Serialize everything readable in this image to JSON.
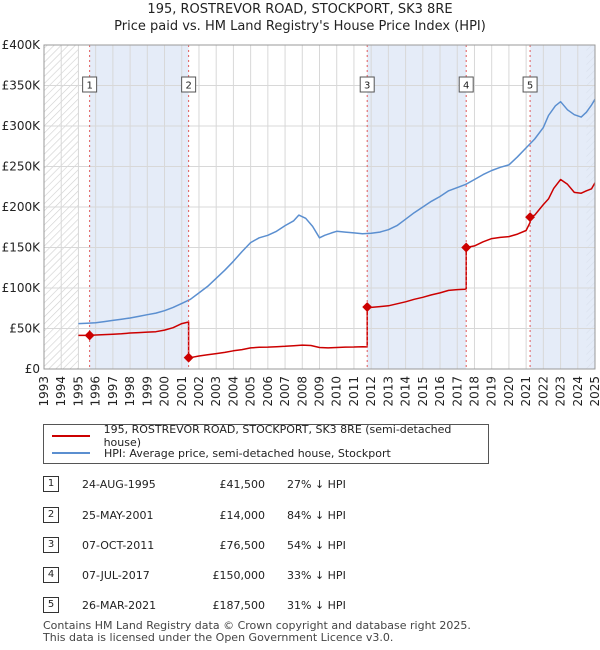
{
  "title_line1": "195, ROSTREVOR ROAD, STOCKPORT, SK3 8RE",
  "title_line2": "Price paid vs. HM Land Registry's House Price Index (HPI)",
  "legend": {
    "property": "195, ROSTREVOR ROAD, STOCKPORT, SK3 8RE (semi-detached house)",
    "hpi": "HPI: Average price, semi-detached house, Stockport"
  },
  "transactions": [
    {
      "num": "1",
      "date": "24-AUG-1995",
      "price": "£41,500",
      "hpi": "27% ↓ HPI"
    },
    {
      "num": "2",
      "date": "25-MAY-2001",
      "price": "£14,000",
      "hpi": "84% ↓ HPI"
    },
    {
      "num": "3",
      "date": "07-OCT-2011",
      "price": "£76,500",
      "hpi": "54% ↓ HPI"
    },
    {
      "num": "4",
      "date": "07-JUL-2017",
      "price": "£150,000",
      "hpi": "33% ↓ HPI"
    },
    {
      "num": "5",
      "date": "26-MAR-2021",
      "price": "£187,500",
      "hpi": "31% ↓ HPI"
    }
  ],
  "footer_line1": "Contains HM Land Registry data © Crown copyright and database right 2025.",
  "footer_line2": "This data is licensed under the Open Government Licence v3.0.",
  "colors": {
    "property": "#cc0000",
    "hpi": "#5b8fd0",
    "shade": "#dce6f5",
    "marker_line": "#e05a5a"
  },
  "chart_data": {
    "type": "line",
    "xlim": [
      1993,
      2025
    ],
    "ylim": [
      0,
      400000
    ],
    "x_ticks": [
      "1993",
      "1994",
      "1995",
      "1996",
      "1997",
      "1998",
      "1999",
      "2000",
      "2001",
      "2002",
      "2003",
      "2004",
      "2005",
      "2006",
      "2007",
      "2008",
      "2009",
      "2010",
      "2011",
      "2012",
      "2013",
      "2014",
      "2015",
      "2016",
      "2017",
      "2018",
      "2019",
      "2020",
      "2021",
      "2022",
      "2023",
      "2024",
      "2025"
    ],
    "y_ticks": [
      {
        "value": 0,
        "label": "£0"
      },
      {
        "value": 50000,
        "label": "£50K"
      },
      {
        "value": 100000,
        "label": "£100K"
      },
      {
        "value": 150000,
        "label": "£150K"
      },
      {
        "value": 200000,
        "label": "£200K"
      },
      {
        "value": 250000,
        "label": "£250K"
      },
      {
        "value": 300000,
        "label": "£300K"
      },
      {
        "value": 350000,
        "label": "£350K"
      },
      {
        "value": 400000,
        "label": "£400K"
      }
    ],
    "grid": true,
    "hatched_ranges": [
      [
        1993,
        1995
      ],
      [
        2024.5,
        2025
      ]
    ],
    "shaded_ranges": [
      [
        1995.65,
        2001.4
      ],
      [
        2011.77,
        2017.52
      ],
      [
        2021.23,
        2025
      ]
    ],
    "sales": [
      {
        "label": "1",
        "x": 1995.65,
        "y": 41500
      },
      {
        "label": "2",
        "x": 2001.4,
        "y": 14000
      },
      {
        "label": "3",
        "x": 2011.77,
        "y": 76500
      },
      {
        "label": "4",
        "x": 2017.52,
        "y": 150000
      },
      {
        "label": "5",
        "x": 2021.23,
        "y": 187500
      }
    ],
    "series": [
      {
        "name": "195, ROSTREVOR ROAD, STOCKPORT, SK3 8RE (semi-detached house)",
        "x": [
          1995.0,
          1995.65,
          1995.65,
          1996.0,
          1996.5,
          1997.0,
          1997.5,
          1998.0,
          1998.5,
          1999.0,
          1999.5,
          2000.0,
          2000.5,
          2001.0,
          2001.4,
          2001.4,
          2001.6,
          2002.0,
          2002.5,
          2003.0,
          2003.5,
          2004.0,
          2004.5,
          2005.0,
          2005.5,
          2006.0,
          2006.5,
          2007.0,
          2007.5,
          2008.0,
          2008.5,
          2009.0,
          2009.5,
          2010.0,
          2010.5,
          2011.0,
          2011.5,
          2011.77,
          2011.77,
          2012.0,
          2012.5,
          2013.0,
          2013.5,
          2014.0,
          2014.5,
          2015.0,
          2015.5,
          2016.0,
          2016.5,
          2017.0,
          2017.45,
          2017.52,
          2017.52,
          2018.0,
          2018.5,
          2019.0,
          2019.5,
          2020.0,
          2020.5,
          2021.0,
          2021.23,
          2021.23,
          2021.5,
          2022.0,
          2022.3,
          2022.6,
          2023.0,
          2023.4,
          2023.8,
          2024.2,
          2024.5,
          2024.8,
          2025.0
        ],
        "y": [
          41500,
          41500,
          41500,
          42000,
          42500,
          43000,
          43500,
          44500,
          45000,
          45500,
          46000,
          48000,
          51000,
          56000,
          58000,
          14000,
          14500,
          16000,
          17500,
          19000,
          20500,
          22500,
          24000,
          26000,
          26800,
          27000,
          27500,
          28000,
          28800,
          29500,
          29000,
          26500,
          26000,
          26500,
          27000,
          27200,
          27500,
          27300,
          76500,
          76000,
          77000,
          78000,
          80500,
          83000,
          86000,
          88500,
          91500,
          94000,
          97000,
          98000,
          98500,
          99000,
          150000,
          152000,
          157000,
          161000,
          162500,
          163500,
          166500,
          171000,
          181000,
          187500,
          190000,
          203000,
          210000,
          223000,
          234000,
          228000,
          218000,
          217000,
          220000,
          222500,
          230000
        ]
      },
      {
        "name": "HPI: Average price, semi-detached house, Stockport",
        "x": [
          1995.0,
          1995.5,
          1996.0,
          1996.5,
          1997.0,
          1997.5,
          1998.0,
          1998.5,
          1999.0,
          1999.5,
          2000.0,
          2000.5,
          2001.0,
          2001.5,
          2002.0,
          2002.5,
          2003.0,
          2003.5,
          2004.0,
          2004.5,
          2005.0,
          2005.5,
          2006.0,
          2006.5,
          2007.0,
          2007.5,
          2007.8,
          2008.2,
          2008.6,
          2009.0,
          2009.3,
          2009.7,
          2010.0,
          2010.5,
          2011.0,
          2011.5,
          2012.0,
          2012.5,
          2013.0,
          2013.5,
          2014.0,
          2014.5,
          2015.0,
          2015.5,
          2016.0,
          2016.5,
          2017.0,
          2017.5,
          2018.0,
          2018.5,
          2019.0,
          2019.5,
          2020.0,
          2020.5,
          2021.0,
          2021.5,
          2022.0,
          2022.3,
          2022.7,
          2023.0,
          2023.4,
          2023.8,
          2024.2,
          2024.5,
          2024.8,
          2025.0
        ],
        "y": [
          56000,
          56500,
          57000,
          58500,
          60000,
          61500,
          63000,
          65000,
          67000,
          69000,
          72000,
          76000,
          81000,
          86000,
          94000,
          102000,
          112000,
          122000,
          133000,
          145000,
          156000,
          162000,
          165000,
          170000,
          177000,
          183000,
          190000,
          186000,
          176000,
          162000,
          165000,
          168000,
          170000,
          169000,
          168000,
          167000,
          167500,
          169000,
          172000,
          177000,
          185000,
          193000,
          200000,
          207000,
          213000,
          220000,
          224000,
          228000,
          234000,
          240000,
          245000,
          249000,
          252000,
          262000,
          273000,
          284000,
          298000,
          313000,
          325000,
          330000,
          320000,
          314000,
          311000,
          317000,
          326000,
          333000
        ]
      }
    ]
  }
}
